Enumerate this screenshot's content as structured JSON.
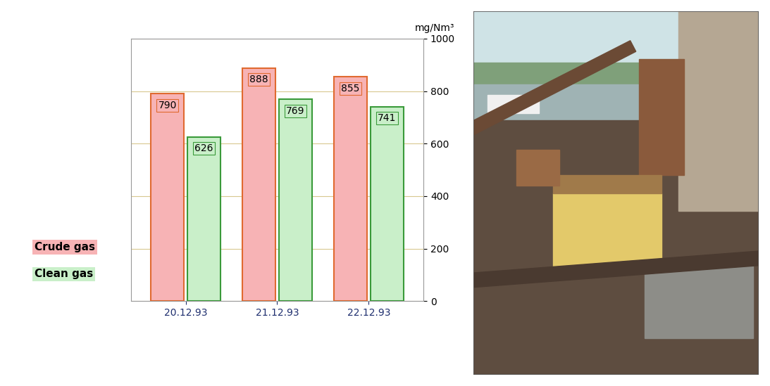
{
  "chart_data": {
    "type": "bar",
    "categories": [
      "20.12.93",
      "21.12.93",
      "22.12.93"
    ],
    "y_label": "mg/Nm³",
    "series": [
      {
        "name": "Crude gas",
        "color": "#f7b3b5",
        "values": [
          790,
          888,
          855
        ]
      },
      {
        "name": "Clean gas",
        "color": "#c9efc9",
        "values": [
          626,
          769,
          741
        ]
      }
    ],
    "ylim": [
      0,
      1000
    ],
    "yticks": [
      0,
      200,
      400,
      600,
      800,
      1000
    ],
    "grid": true,
    "data_labels": true
  }
}
